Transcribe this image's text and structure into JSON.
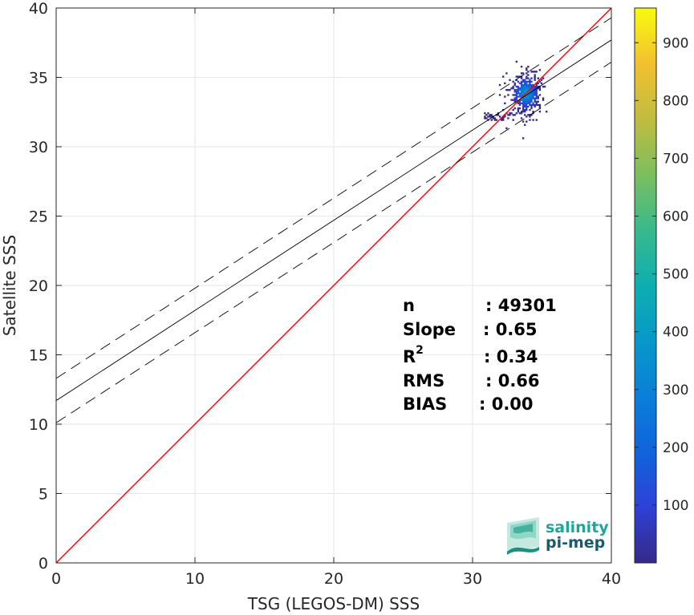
{
  "chart_data": {
    "type": "heatmap",
    "xlabel": "TSG (LEGOS-DM) SSS",
    "ylabel": "Satellite SSS",
    "xlim": [
      0,
      40
    ],
    "ylim": [
      0,
      40
    ],
    "xticks": [
      0,
      10,
      20,
      30,
      40
    ],
    "yticks": [
      0,
      5,
      10,
      15,
      20,
      25,
      30,
      35,
      40
    ],
    "grid": true,
    "colorbar": {
      "range": [
        0,
        960
      ],
      "ticks": [
        100,
        200,
        300,
        400,
        500,
        600,
        700,
        800,
        900
      ],
      "colormap": "parula"
    },
    "density_cluster": {
      "x_center": 33.8,
      "y_center": 33.8,
      "x_range": [
        30.7,
        35.3
      ],
      "y_range": [
        29.6,
        37.8
      ],
      "peak_count": 960
    },
    "lines": [
      {
        "role": "one-to-one",
        "color": "#ff0000",
        "style": "solid",
        "intercept": 0,
        "slope": 1
      },
      {
        "role": "regression",
        "color": "#000000",
        "style": "solid",
        "intercept": 11.7,
        "slope": 0.65
      },
      {
        "role": "regression-upper",
        "color": "#000000",
        "style": "dashed",
        "intercept": 13.3,
        "slope": 0.65
      },
      {
        "role": "regression-lower",
        "color": "#000000",
        "style": "dashed",
        "intercept": 10.1,
        "slope": 0.65
      }
    ],
    "stats": [
      {
        "label": "n",
        "value": ": 49301"
      },
      {
        "label": "Slope",
        "value": ": 0.65"
      },
      {
        "label": "R",
        "sup": "2",
        "value": ": 0.34"
      },
      {
        "label": "RMS",
        "value": ": 0.66"
      },
      {
        "label": "BIAS",
        "value": ": 0.00"
      }
    ]
  },
  "logo": {
    "line1": "salinity",
    "line2": "pi-mep",
    "color": "#1aa89a"
  }
}
